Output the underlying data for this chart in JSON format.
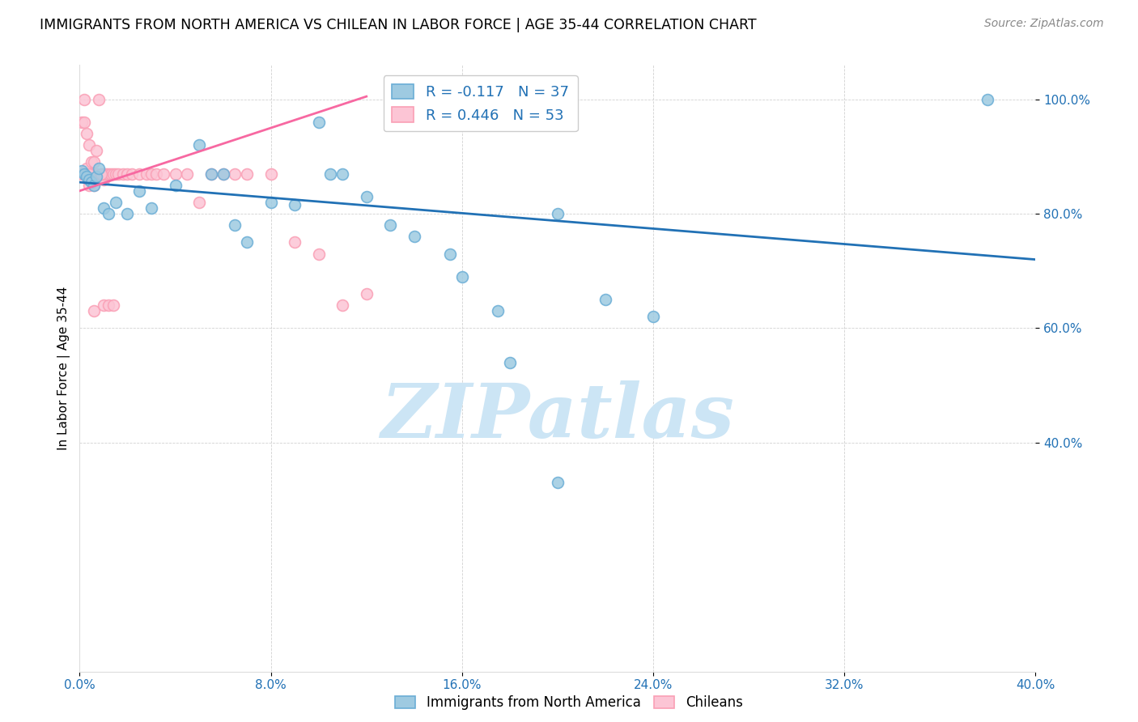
{
  "title": "IMMIGRANTS FROM NORTH AMERICA VS CHILEAN IN LABOR FORCE | AGE 35-44 CORRELATION CHART",
  "source": "Source: ZipAtlas.com",
  "ylabel": "In Labor Force | Age 35-44",
  "xlabel_blue": "Immigrants from North America",
  "xlabel_pink": "Chileans",
  "xlim": [
    0.0,
    0.4
  ],
  "ylim": [
    0.0,
    1.06
  ],
  "yticks": [
    0.4,
    0.6,
    0.8,
    1.0
  ],
  "xticks": [
    0.0,
    0.08,
    0.16,
    0.24,
    0.32,
    0.4
  ],
  "legend_blue_R": "-0.117",
  "legend_blue_N": "37",
  "legend_pink_R": "0.446",
  "legend_pink_N": "53",
  "blue_scatter_x": [
    0.001,
    0.002,
    0.003,
    0.004,
    0.005,
    0.006,
    0.007,
    0.008,
    0.01,
    0.012,
    0.015,
    0.02,
    0.025,
    0.03,
    0.04,
    0.05,
    0.055,
    0.06,
    0.065,
    0.07,
    0.08,
    0.09,
    0.1,
    0.11,
    0.12,
    0.13,
    0.14,
    0.155,
    0.16,
    0.2,
    0.22,
    0.24,
    0.105,
    0.175,
    0.18,
    0.38,
    0.2
  ],
  "blue_scatter_y": [
    0.875,
    0.87,
    0.865,
    0.86,
    0.855,
    0.85,
    0.865,
    0.88,
    0.81,
    0.8,
    0.82,
    0.8,
    0.84,
    0.81,
    0.85,
    0.92,
    0.87,
    0.87,
    0.78,
    0.75,
    0.82,
    0.815,
    0.96,
    0.87,
    0.83,
    0.78,
    0.76,
    0.73,
    0.69,
    0.8,
    0.65,
    0.62,
    0.87,
    0.63,
    0.54,
    1.0,
    0.33
  ],
  "pink_scatter_x": [
    0.001,
    0.001,
    0.002,
    0.002,
    0.003,
    0.003,
    0.004,
    0.004,
    0.005,
    0.005,
    0.006,
    0.006,
    0.007,
    0.007,
    0.008,
    0.009,
    0.01,
    0.01,
    0.011,
    0.012,
    0.013,
    0.014,
    0.015,
    0.016,
    0.018,
    0.02,
    0.022,
    0.025,
    0.028,
    0.03,
    0.032,
    0.035,
    0.04,
    0.045,
    0.05,
    0.055,
    0.06,
    0.065,
    0.07,
    0.08,
    0.09,
    0.1,
    0.11,
    0.12,
    0.008,
    0.009,
    0.003,
    0.002,
    0.004,
    0.006,
    0.01,
    0.012,
    0.014
  ],
  "pink_scatter_y": [
    0.96,
    0.87,
    0.96,
    0.87,
    0.94,
    0.88,
    0.92,
    0.85,
    0.87,
    0.89,
    0.89,
    0.85,
    0.91,
    0.87,
    0.865,
    0.865,
    0.86,
    0.87,
    0.87,
    0.87,
    0.87,
    0.87,
    0.87,
    0.87,
    0.87,
    0.87,
    0.87,
    0.87,
    0.87,
    0.87,
    0.87,
    0.87,
    0.87,
    0.87,
    0.82,
    0.87,
    0.87,
    0.87,
    0.87,
    0.87,
    0.75,
    0.73,
    0.64,
    0.66,
    1.0,
    0.87,
    0.87,
    1.0,
    0.87,
    0.63,
    0.64,
    0.64,
    0.64
  ],
  "blue_line_x": [
    0.0,
    0.4
  ],
  "blue_line_y": [
    0.855,
    0.72
  ],
  "pink_line_x": [
    0.0,
    0.12
  ],
  "pink_line_y": [
    0.84,
    1.005
  ],
  "scatter_size": 100,
  "blue_color": "#6baed6",
  "pink_color": "#fa9fb5",
  "blue_fill_color": "#9ecae1",
  "pink_fill_color": "#fcc5d5",
  "blue_line_color": "#2171b5",
  "pink_line_color": "#f768a1",
  "watermark": "ZIPatlas",
  "watermark_color": "#cce5f5",
  "watermark_fontsize": 68
}
